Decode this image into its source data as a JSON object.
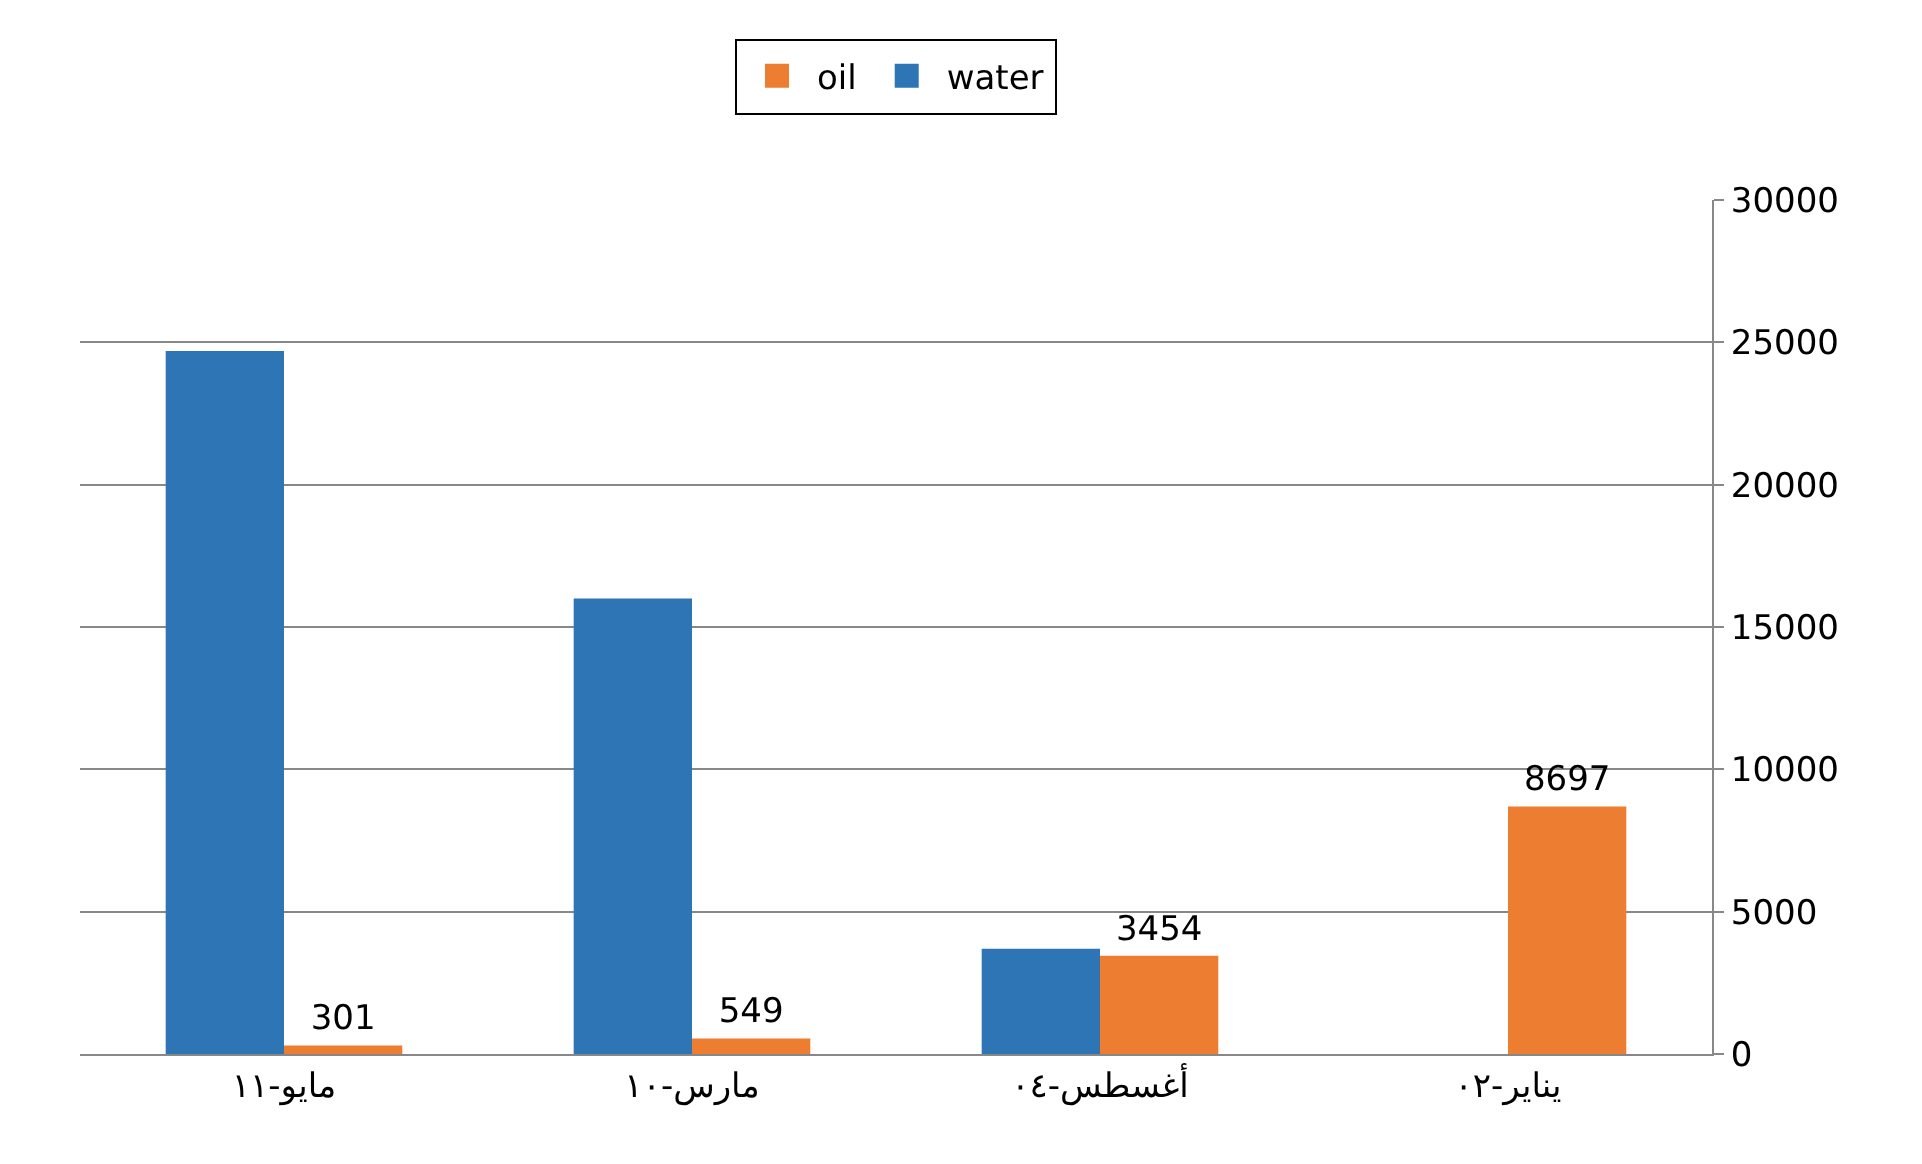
{
  "chart_data": {
    "type": "bar",
    "categories": [
      "مايو-١١",
      "مارس-١٠",
      "أغسطس-٠٤",
      "يناير-٠٢"
    ],
    "series": [
      {
        "name": "oil",
        "color": "#ed7d31",
        "values": [
          301,
          549,
          3454,
          8697
        ],
        "value_labels": [
          "301",
          "549",
          "3454",
          "8697"
        ]
      },
      {
        "name": "water",
        "color": "#2e75b6",
        "values": [
          24700,
          16000,
          3700,
          null
        ]
      }
    ],
    "ylim": [
      0,
      30000
    ],
    "yticks": [
      0,
      5000,
      10000,
      15000,
      20000,
      25000,
      30000
    ],
    "grid": "y",
    "legend": "top"
  }
}
